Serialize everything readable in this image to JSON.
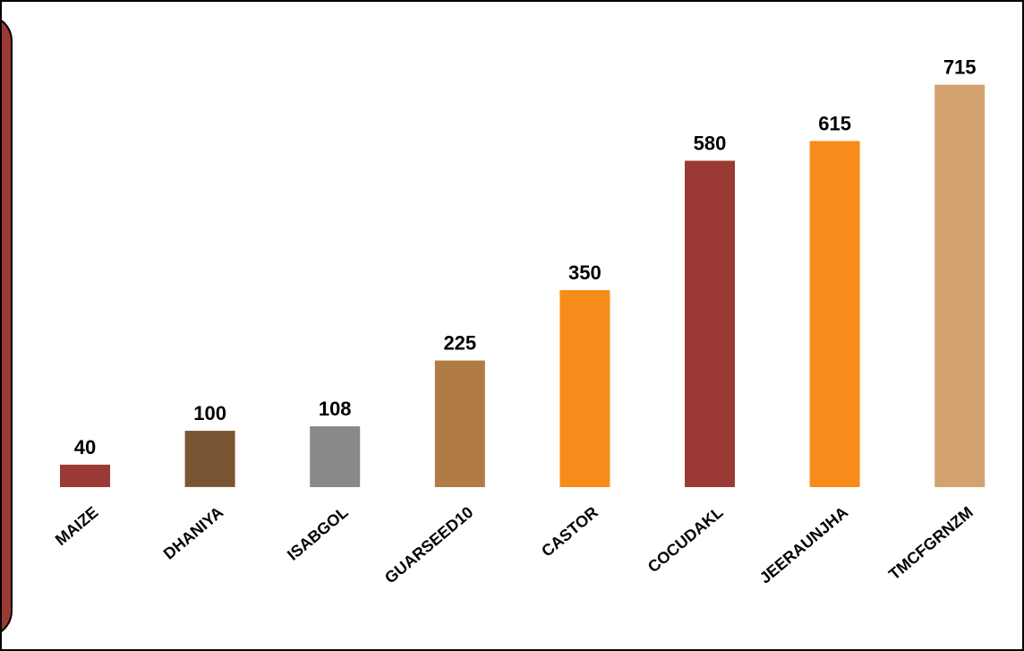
{
  "theme": {
    "side_panel_color": "#9B3A35"
  },
  "chart_data": {
    "type": "bar",
    "title": "",
    "xlabel": "",
    "ylabel": "",
    "ylim": [
      0,
      800
    ],
    "grid": false,
    "legend": "none",
    "categories": [
      "MAIZE",
      "DHANIYA",
      "ISABGOL",
      "GUARSEED10",
      "CASTOR",
      "COCUDAKL",
      "JEERAUNJHA",
      "TMCFGRNZM"
    ],
    "values": [
      40,
      100,
      108,
      225,
      350,
      580,
      615,
      715
    ],
    "bar_colors": [
      "#9B3A35",
      "#7A5533",
      "#898989",
      "#B07B45",
      "#F78C1A",
      "#9B3A35",
      "#F78C1A",
      "#D4A26F"
    ]
  }
}
